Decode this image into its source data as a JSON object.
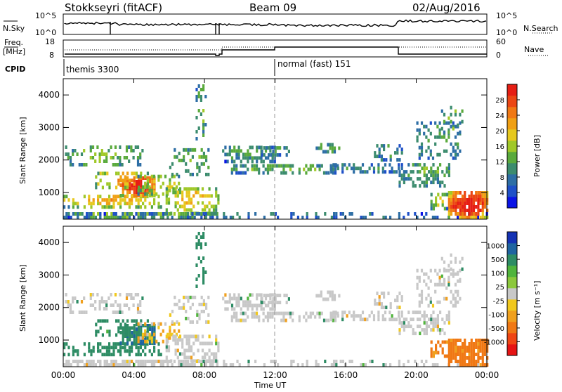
{
  "header": {
    "radar": "Stokkseyri (fitACF)",
    "beam": "Beam 09",
    "date": "02/Aug/2016"
  },
  "status_panel": {
    "nsky_label": "N.Sky",
    "nsearch_label": "N.Search",
    "nsky_ticks": [
      "10^5",
      "10^0"
    ],
    "nsearch_ticks": [
      "10^5",
      "10^0"
    ],
    "freq_label": "Freq.",
    "freq_unit": "[MHz]",
    "freq_ticks": [
      "18",
      "8"
    ],
    "nave_label": "Nave",
    "nave_ticks": [
      "60",
      "0"
    ],
    "cpid_label": "CPID",
    "cpid_segments": [
      {
        "start_hour": 0,
        "label": "themis 3300"
      },
      {
        "start_hour": 12,
        "label": "normal (fast) 151"
      }
    ]
  },
  "chart_data": [
    {
      "type": "heatmap",
      "name": "power",
      "ylabel": "Slant Range [km]",
      "xlabel": "",
      "x_ticks": [
        "00:00",
        "04:00",
        "08:00",
        "12:00",
        "16:00",
        "20:00",
        "00:00"
      ],
      "x_range_hours": [
        0,
        24
      ],
      "y_ticks": [
        "1000",
        "2000",
        "3000",
        "4000"
      ],
      "ylim": [
        180,
        4500
      ],
      "colorbar": {
        "label": "Power [dB]",
        "ticks": [
          "4",
          "8",
          "12",
          "16",
          "20",
          "24",
          "28"
        ],
        "range": [
          0,
          30
        ],
        "colors": [
          "#0a14e6",
          "#1e50c8",
          "#2d6ea5",
          "#3c8c6e",
          "#5aaa3c",
          "#a0c828",
          "#e6c81e",
          "#f0a014",
          "#f07814",
          "#eb4614",
          "#e61e14"
        ]
      }
    },
    {
      "type": "heatmap",
      "name": "velocity",
      "ylabel": "Slant Range [km]",
      "xlabel": "Time UT",
      "x_ticks": [
        "00:00",
        "04:00",
        "08:00",
        "12:00",
        "16:00",
        "20:00",
        "00:00"
      ],
      "x_range_hours": [
        0,
        24
      ],
      "y_ticks": [
        "1000",
        "2000",
        "3000",
        "4000"
      ],
      "ylim": [
        180,
        4500
      ],
      "colorbar": {
        "label": "Velocity [m s⁻¹]",
        "ticks": [
          "1000",
          "500",
          "100",
          "25",
          "-25",
          "-100",
          "-500",
          "-1000"
        ],
        "colors": [
          "#1432b4",
          "#1e64a0",
          "#2d8c64",
          "#50b43c",
          "#8cc83c",
          "#c8c8c8",
          "#f0c81e",
          "#f0a01e",
          "#f07814",
          "#f04614",
          "#e61414"
        ]
      }
    }
  ],
  "ground_scatter_color": "#c8c8c8",
  "echo_regions": [
    {
      "t0": 0.0,
      "t1": 8.8,
      "r0": 180,
      "r1": 320,
      "p": 14,
      "v": 0,
      "d": 0.55
    },
    {
      "t0": 0.0,
      "t1": 5.5,
      "r0": 500,
      "r1": 900,
      "p": 18,
      "v": 180,
      "d": 0.55
    },
    {
      "t0": 3.2,
      "t1": 5.2,
      "r0": 850,
      "r1": 1450,
      "p": 27,
      "v": 260,
      "d": 0.75
    },
    {
      "t0": 1.8,
      "t1": 4.8,
      "r0": 1100,
      "r1": 1600,
      "p": 19,
      "v": 140,
      "d": 0.45
    },
    {
      "t0": 0.1,
      "t1": 4.5,
      "r0": 1800,
      "r1": 2400,
      "p": 13,
      "v": 0,
      "d": 0.35
    },
    {
      "t0": 4.2,
      "t1": 6.6,
      "r0": 900,
      "r1": 1500,
      "p": 15,
      "v": -60,
      "d": 0.35
    },
    {
      "t0": 5.8,
      "t1": 8.8,
      "r0": 300,
      "r1": 1100,
      "p": 17,
      "v": 0,
      "d": 0.45
    },
    {
      "t0": 6.0,
      "t1": 8.2,
      "r0": 1500,
      "r1": 2300,
      "p": 12,
      "v": 0,
      "d": 0.3
    },
    {
      "t0": 7.5,
      "t1": 8.1,
      "r0": 2600,
      "r1": 4300,
      "p": 11,
      "v": 150,
      "d": 0.3
    },
    {
      "t0": 0.0,
      "t1": 24.0,
      "r0": 180,
      "r1": 290,
      "p": 8,
      "v": 0,
      "d": 0.28
    },
    {
      "t0": 9.0,
      "t1": 12.0,
      "r0": 1900,
      "r1": 2400,
      "p": 10,
      "v": 0,
      "d": 0.45
    },
    {
      "t0": 9.5,
      "t1": 15.5,
      "r0": 1550,
      "r1": 1800,
      "p": 12,
      "v": 0,
      "d": 0.55
    },
    {
      "t0": 11.2,
      "t1": 12.8,
      "r0": 2100,
      "r1": 2400,
      "p": 10,
      "v": 0,
      "d": 0.5
    },
    {
      "t0": 14.3,
      "t1": 16.0,
      "r0": 2200,
      "r1": 2500,
      "p": 10,
      "v": 0,
      "d": 0.45
    },
    {
      "t0": 15.0,
      "t1": 19.0,
      "r0": 1580,
      "r1": 1800,
      "p": 9,
      "v": 0,
      "d": 0.45
    },
    {
      "t0": 17.6,
      "t1": 19.2,
      "r0": 1950,
      "r1": 2450,
      "p": 9,
      "v": 0,
      "d": 0.4
    },
    {
      "t0": 19.0,
      "t1": 22.0,
      "r0": 1150,
      "r1": 1900,
      "p": 11,
      "v": 0,
      "d": 0.5
    },
    {
      "t0": 20.0,
      "t1": 22.5,
      "r0": 2000,
      "r1": 3100,
      "p": 10,
      "v": 0,
      "d": 0.3
    },
    {
      "t0": 21.4,
      "t1": 22.6,
      "r0": 2800,
      "r1": 3600,
      "p": 12,
      "v": 0,
      "d": 0.25
    },
    {
      "t0": 21.8,
      "t1": 24.0,
      "r0": 180,
      "r1": 1000,
      "p": 27,
      "v": -450,
      "d": 0.8
    },
    {
      "t0": 20.8,
      "t1": 21.7,
      "r0": 450,
      "r1": 900,
      "p": 16,
      "v": -350,
      "d": 0.4
    }
  ]
}
